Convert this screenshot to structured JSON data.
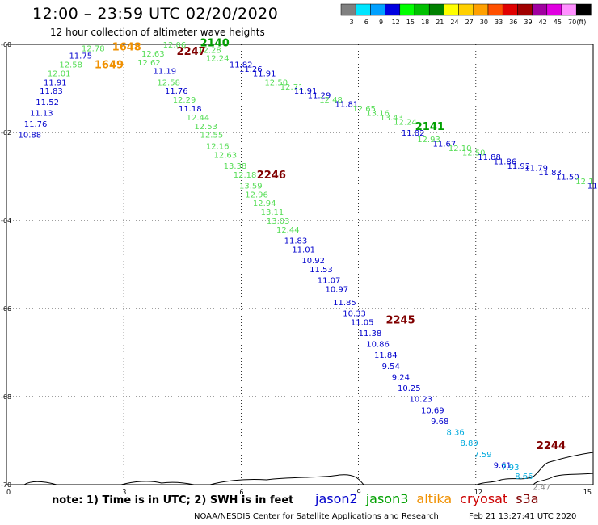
{
  "header": {
    "title": "12:00 – 23:59 UTC 02/20/2020",
    "subtitle": "12 hour collection of altimeter wave heights"
  },
  "color_scale": {
    "unit": "(ft)",
    "levels": [
      {
        "label": "3",
        "color": "#808080"
      },
      {
        "label": "6",
        "color": "#00e5ff"
      },
      {
        "label": "9",
        "color": "#00a0ff"
      },
      {
        "label": "12",
        "color": "#0000e0"
      },
      {
        "label": "15",
        "color": "#00ff00"
      },
      {
        "label": "18",
        "color": "#00c000"
      },
      {
        "label": "21",
        "color": "#008000"
      },
      {
        "label": "24",
        "color": "#ffff00"
      },
      {
        "label": "27",
        "color": "#ffd000"
      },
      {
        "label": "30",
        "color": "#ffa000"
      },
      {
        "label": "33",
        "color": "#ff5000"
      },
      {
        "label": "36",
        "color": "#e00000"
      },
      {
        "label": "39",
        "color": "#a00000"
      },
      {
        "label": "42",
        "color": "#a000a0"
      },
      {
        "label": "45",
        "color": "#e000e0"
      },
      {
        "label": "70",
        "color": "#ff90ff"
      },
      {
        "label": "",
        "color": "#000000"
      }
    ]
  },
  "axes": {
    "x_ticks": [
      "0",
      "3",
      "6",
      "9",
      "12",
      "15"
    ],
    "y_ticks": [
      "-60",
      "-62",
      "-64",
      "-66",
      "-68",
      "-70"
    ]
  },
  "chart_data": {
    "type": "scatter",
    "x_range": [
      0,
      15
    ],
    "y_range": [
      -70,
      -60
    ],
    "pass_colors": {
      "jason2": "#0000cc",
      "jason3": "#55dd55",
      "altika": "#f09000",
      "cryosat": "#800000",
      "s3a": "#00aadd",
      "gray": "#888888"
    },
    "pass_labels": [
      {
        "text": "1648",
        "x": 2.7,
        "y": -60.05,
        "color": "#f09000"
      },
      {
        "text": "1649",
        "x": 2.25,
        "y": -60.45,
        "color": "#f09000"
      },
      {
        "text": "2140",
        "x": 4.95,
        "y": -59.95,
        "color": "#00a000"
      },
      {
        "text": "2247",
        "x": 4.35,
        "y": -60.15,
        "color": "#800000"
      },
      {
        "text": "2246",
        "x": 6.4,
        "y": -62.95,
        "color": "#800000"
      },
      {
        "text": "2141",
        "x": 10.45,
        "y": -61.85,
        "color": "#00a000"
      },
      {
        "text": "2245",
        "x": 9.7,
        "y": -66.25,
        "color": "#800000"
      },
      {
        "text": "2244",
        "x": 13.55,
        "y": -69.1,
        "color": "#800000"
      }
    ],
    "swh_points": [
      {
        "v": "12.78",
        "x": 1.92,
        "y": -60.08,
        "color": "#55dd55"
      },
      {
        "v": "11.75",
        "x": 1.6,
        "y": -60.25,
        "color": "#0000cc"
      },
      {
        "v": "12.58",
        "x": 1.35,
        "y": -60.45,
        "color": "#55dd55"
      },
      {
        "v": "12.01",
        "x": 1.05,
        "y": -60.65,
        "color": "#55dd55"
      },
      {
        "v": "11.91",
        "x": 0.95,
        "y": -60.85,
        "color": "#0000cc"
      },
      {
        "v": "11.83",
        "x": 0.85,
        "y": -61.05,
        "color": "#0000cc"
      },
      {
        "v": "11.52",
        "x": 0.75,
        "y": -61.3,
        "color": "#0000cc"
      },
      {
        "v": "11.13",
        "x": 0.6,
        "y": -61.55,
        "color": "#0000cc"
      },
      {
        "v": "11.76",
        "x": 0.45,
        "y": -61.8,
        "color": "#0000cc"
      },
      {
        "v": "10.88",
        "x": 0.3,
        "y": -62.05,
        "color": "#0000cc"
      },
      {
        "v": "12.06",
        "x": 4.0,
        "y": -60.0,
        "color": "#55dd55"
      },
      {
        "v": "12.63",
        "x": 3.45,
        "y": -60.2,
        "color": "#55dd55"
      },
      {
        "v": "12.62",
        "x": 3.35,
        "y": -60.4,
        "color": "#55dd55"
      },
      {
        "v": "11.19",
        "x": 3.75,
        "y": -60.6,
        "color": "#0000cc"
      },
      {
        "v": "12.58",
        "x": 3.85,
        "y": -60.85,
        "color": "#55dd55"
      },
      {
        "v": "11.76",
        "x": 4.05,
        "y": -61.05,
        "color": "#0000cc"
      },
      {
        "v": "12.29",
        "x": 4.25,
        "y": -61.25,
        "color": "#55dd55"
      },
      {
        "v": "11.18",
        "x": 4.4,
        "y": -61.45,
        "color": "#0000cc"
      },
      {
        "v": "12.44",
        "x": 4.6,
        "y": -61.65,
        "color": "#55dd55"
      },
      {
        "v": "12.53",
        "x": 4.8,
        "y": -61.85,
        "color": "#55dd55"
      },
      {
        "v": "12.55",
        "x": 4.95,
        "y": -62.05,
        "color": "#55dd55"
      },
      {
        "v": "12.16",
        "x": 5.1,
        "y": -62.3,
        "color": "#55dd55"
      },
      {
        "v": "12.63",
        "x": 5.3,
        "y": -62.5,
        "color": "#55dd55"
      },
      {
        "v": "13.38",
        "x": 5.55,
        "y": -62.75,
        "color": "#55dd55"
      },
      {
        "v": "12.18",
        "x": 5.8,
        "y": -62.95,
        "color": "#55dd55"
      },
      {
        "v": "13.59",
        "x": 5.95,
        "y": -63.2,
        "color": "#55dd55"
      },
      {
        "v": "12.96",
        "x": 6.1,
        "y": -63.4,
        "color": "#55dd55"
      },
      {
        "v": "12.94",
        "x": 6.3,
        "y": -63.6,
        "color": "#55dd55"
      },
      {
        "v": "13.11",
        "x": 6.5,
        "y": -63.8,
        "color": "#55dd55"
      },
      {
        "v": "13.03",
        "x": 6.65,
        "y": -64.0,
        "color": "#55dd55"
      },
      {
        "v": "12.44",
        "x": 6.9,
        "y": -64.2,
        "color": "#55dd55"
      },
      {
        "v": "11.83",
        "x": 7.1,
        "y": -64.45,
        "color": "#0000cc"
      },
      {
        "v": "11.01",
        "x": 7.3,
        "y": -64.65,
        "color": "#0000cc"
      },
      {
        "v": "10.92",
        "x": 7.55,
        "y": -64.9,
        "color": "#0000cc"
      },
      {
        "v": "11.53",
        "x": 7.75,
        "y": -65.1,
        "color": "#0000cc"
      },
      {
        "v": "11.07",
        "x": 7.95,
        "y": -65.35,
        "color": "#0000cc"
      },
      {
        "v": "10.97",
        "x": 8.15,
        "y": -65.55,
        "color": "#0000cc"
      },
      {
        "v": "11.85",
        "x": 8.35,
        "y": -65.85,
        "color": "#0000cc"
      },
      {
        "v": "10.33",
        "x": 8.6,
        "y": -66.1,
        "color": "#0000cc"
      },
      {
        "v": "11.05",
        "x": 8.8,
        "y": -66.3,
        "color": "#0000cc"
      },
      {
        "v": "11.38",
        "x": 9.0,
        "y": -66.55,
        "color": "#0000cc"
      },
      {
        "v": "10.86",
        "x": 9.2,
        "y": -66.8,
        "color": "#0000cc"
      },
      {
        "v": "11.84",
        "x": 9.4,
        "y": -67.05,
        "color": "#0000cc"
      },
      {
        "v": "9.54",
        "x": 9.6,
        "y": -67.3,
        "color": "#0000cc"
      },
      {
        "v": "9.24",
        "x": 9.85,
        "y": -67.55,
        "color": "#0000cc"
      },
      {
        "v": "10.25",
        "x": 10.0,
        "y": -67.8,
        "color": "#0000cc"
      },
      {
        "v": "10.23",
        "x": 10.3,
        "y": -68.05,
        "color": "#0000cc"
      },
      {
        "v": "10.69",
        "x": 10.6,
        "y": -68.3,
        "color": "#0000cc"
      },
      {
        "v": "9.68",
        "x": 10.85,
        "y": -68.55,
        "color": "#0000cc"
      },
      {
        "v": "8.36",
        "x": 11.25,
        "y": -68.8,
        "color": "#00aadd"
      },
      {
        "v": "8.89",
        "x": 11.6,
        "y": -69.05,
        "color": "#00aadd"
      },
      {
        "v": "7.59",
        "x": 11.95,
        "y": -69.3,
        "color": "#00aadd"
      },
      {
        "v": "9.61",
        "x": 12.45,
        "y": -69.55,
        "color": "#0000cc"
      },
      {
        "v": "7.93",
        "x": 12.65,
        "y": -69.6,
        "color": "#00aadd"
      },
      {
        "v": "8.66",
        "x": 13.0,
        "y": -69.8,
        "color": "#00aadd"
      },
      {
        "v": "2.47",
        "x": 13.45,
        "y": -70.05,
        "color": "#888888"
      },
      {
        "v": "12.28",
        "x": 4.9,
        "y": -60.12,
        "color": "#55dd55"
      },
      {
        "v": "12.24",
        "x": 5.1,
        "y": -60.3,
        "color": "#55dd55"
      },
      {
        "v": "11.82",
        "x": 5.7,
        "y": -60.45,
        "color": "#0000cc"
      },
      {
        "v": "11.26",
        "x": 5.95,
        "y": -60.55,
        "color": "#0000cc"
      },
      {
        "v": "11.91",
        "x": 6.3,
        "y": -60.65,
        "color": "#0000cc"
      },
      {
        "v": "12.50",
        "x": 6.6,
        "y": -60.85,
        "color": "#55dd55"
      },
      {
        "v": "12.71",
        "x": 7.0,
        "y": -60.95,
        "color": "#55dd55"
      },
      {
        "v": "11.91",
        "x": 7.35,
        "y": -61.05,
        "color": "#0000cc"
      },
      {
        "v": "11.29",
        "x": 7.7,
        "y": -61.15,
        "color": "#0000cc"
      },
      {
        "v": "12.48",
        "x": 8.0,
        "y": -61.25,
        "color": "#55dd55"
      },
      {
        "v": "11.81",
        "x": 8.4,
        "y": -61.35,
        "color": "#0000cc"
      },
      {
        "v": "12.65",
        "x": 8.85,
        "y": -61.45,
        "color": "#55dd55"
      },
      {
        "v": "13.16",
        "x": 9.2,
        "y": -61.55,
        "color": "#55dd55"
      },
      {
        "v": "13.43",
        "x": 9.55,
        "y": -61.65,
        "color": "#55dd55"
      },
      {
        "v": "12.24",
        "x": 9.9,
        "y": -61.75,
        "color": "#55dd55"
      },
      {
        "v": "11.82",
        "x": 10.1,
        "y": -62.0,
        "color": "#0000cc"
      },
      {
        "v": "12.93",
        "x": 10.5,
        "y": -62.15,
        "color": "#55dd55"
      },
      {
        "v": "11.67",
        "x": 10.9,
        "y": -62.25,
        "color": "#0000cc"
      },
      {
        "v": "12.10",
        "x": 11.3,
        "y": -62.35,
        "color": "#55dd55"
      },
      {
        "v": "12.50",
        "x": 11.65,
        "y": -62.45,
        "color": "#55dd55"
      },
      {
        "v": "11.88",
        "x": 12.05,
        "y": -62.55,
        "color": "#0000cc"
      },
      {
        "v": "11.86",
        "x": 12.45,
        "y": -62.65,
        "color": "#0000cc"
      },
      {
        "v": "11.92",
        "x": 12.8,
        "y": -62.75,
        "color": "#0000cc"
      },
      {
        "v": "11.79",
        "x": 13.25,
        "y": -62.8,
        "color": "#0000cc"
      },
      {
        "v": "11.83",
        "x": 13.6,
        "y": -62.9,
        "color": "#0000cc"
      },
      {
        "v": "11.50",
        "x": 14.05,
        "y": -63.0,
        "color": "#0000cc"
      },
      {
        "v": "12.1",
        "x": 14.55,
        "y": -63.1,
        "color": "#55dd55"
      },
      {
        "v": "11.",
        "x": 14.85,
        "y": -63.2,
        "color": "#0000cc"
      }
    ]
  },
  "footer": {
    "note": "note:  1) Time is in UTC;  2) SWH is in feet",
    "legend": [
      {
        "name": "jason2",
        "color": "#0000cc"
      },
      {
        "name": "jason3",
        "color": "#00a000"
      },
      {
        "name": "altika",
        "color": "#f09000"
      },
      {
        "name": "cryosat",
        "color": "#cc0000"
      },
      {
        "name": "s3a",
        "color": "#800000"
      }
    ],
    "credit": "NOAA/NESDIS Center for Satellite Applications and Research",
    "timestamp": "Feb 21 13:27:41 UTC 2020"
  }
}
